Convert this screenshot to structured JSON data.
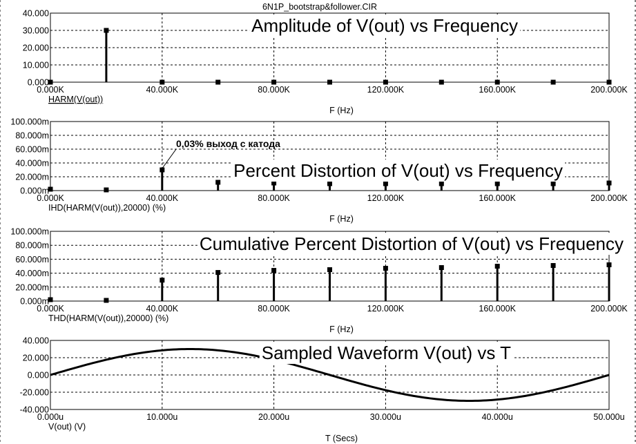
{
  "window_title": "6N1P_bootstrap&follower.CIR",
  "chart_data": [
    {
      "type": "bar",
      "title": "Amplitude of V(out) vs Frequency",
      "trace_label": "HARM(V(out))",
      "xlabel": "F (Hz)",
      "x_ticks": [
        "0.000K",
        "40.000K",
        "80.000K",
        "120.000K",
        "160.000K",
        "200.000K"
      ],
      "y_ticks": [
        "0.000",
        "10.000",
        "20.000",
        "30.000",
        "40.000"
      ],
      "xlim": [
        0,
        200000
      ],
      "ylim": [
        0,
        40
      ],
      "x": [
        0,
        20000,
        40000,
        60000,
        80000,
        100000,
        120000,
        140000,
        160000,
        180000,
        200000
      ],
      "values": [
        0,
        30,
        0,
        0,
        0,
        0,
        0,
        0,
        0,
        0,
        0
      ],
      "grid": true
    },
    {
      "type": "bar",
      "title": "Percent Distortion of V(out) vs Frequency",
      "trace_label": "IHD(HARM(V(out)),20000) (%)",
      "xlabel": "F (Hz)",
      "x_ticks": [
        "0.000K",
        "40.000K",
        "80.000K",
        "120.000K",
        "160.000K",
        "200.000K"
      ],
      "y_ticks": [
        "0.000m",
        "20.000m",
        "40.000m",
        "60.000m",
        "80.000m",
        "100.000m"
      ],
      "xlim": [
        0,
        200000
      ],
      "ylim": [
        0,
        0.1
      ],
      "x": [
        0,
        20000,
        40000,
        60000,
        80000,
        100000,
        120000,
        140000,
        160000,
        180000,
        200000
      ],
      "values": [
        0.002,
        0.001,
        0.03,
        0.012,
        0.011,
        0.01,
        0.01,
        0.01,
        0.01,
        0.01,
        0.011
      ],
      "annotation": "0,03%  выход с катода",
      "grid": true
    },
    {
      "type": "bar",
      "title": "Cumulative Percent Distortion of V(out) vs Frequency",
      "trace_label": "THD(HARM(V(out)),20000) (%)",
      "xlabel": "F (Hz)",
      "x_ticks": [
        "0.000K",
        "40.000K",
        "80.000K",
        "120.000K",
        "160.000K",
        "200.000K"
      ],
      "y_ticks": [
        "0.000m",
        "20.000m",
        "40.000m",
        "60.000m",
        "80.000m",
        "100.000m"
      ],
      "xlim": [
        0,
        200000
      ],
      "ylim": [
        0,
        0.1
      ],
      "x": [
        0,
        20000,
        40000,
        60000,
        80000,
        100000,
        120000,
        140000,
        160000,
        180000,
        200000
      ],
      "values": [
        0.002,
        0.001,
        0.03,
        0.041,
        0.044,
        0.045,
        0.047,
        0.048,
        0.05,
        0.051,
        0.052
      ],
      "grid": true
    },
    {
      "type": "line",
      "title": "Sampled Waveform  V(out) vs T",
      "trace_label": "V(out) (V)",
      "xlabel": "T (Secs)",
      "x_ticks": [
        "0.000u",
        "10.000u",
        "20.000u",
        "30.000u",
        "40.000u",
        "50.000u"
      ],
      "y_ticks": [
        "-40.000",
        "-20.000",
        "0.000",
        "20.000",
        "40.000"
      ],
      "xlim": [
        0,
        50
      ],
      "ylim": [
        -40,
        40
      ],
      "amplitude": 30,
      "period_us": 50,
      "grid": true
    }
  ]
}
